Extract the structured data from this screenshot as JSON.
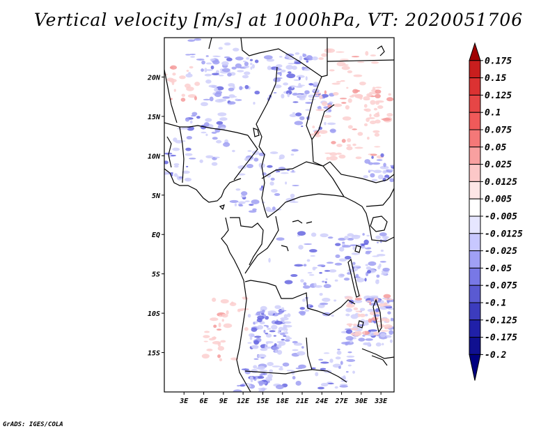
{
  "title": "Vertical velocity [m/s] at 1000hPa, VT: 2020051706",
  "credit": "GrADS: IGES/COLA",
  "map": {
    "lon_range": [
      0,
      35
    ],
    "lat_range": [
      -20,
      25
    ],
    "lat_labels": [
      {
        "value": 20,
        "label": "20N"
      },
      {
        "value": 15,
        "label": "15N"
      },
      {
        "value": 10,
        "label": "10N"
      },
      {
        "value": 5,
        "label": "5N"
      },
      {
        "value": 0,
        "label": "EQ"
      },
      {
        "value": -5,
        "label": "5S"
      },
      {
        "value": -10,
        "label": "10S"
      },
      {
        "value": -15,
        "label": "15S"
      }
    ],
    "lon_labels": [
      {
        "value": 3,
        "label": "3E"
      },
      {
        "value": 6,
        "label": "6E"
      },
      {
        "value": 9,
        "label": "9E"
      },
      {
        "value": 12,
        "label": "12E"
      },
      {
        "value": 15,
        "label": "15E"
      },
      {
        "value": 18,
        "label": "18E"
      },
      {
        "value": 21,
        "label": "21E"
      },
      {
        "value": 24,
        "label": "24E"
      },
      {
        "value": 27,
        "label": "27E"
      },
      {
        "value": 30,
        "label": "30E"
      },
      {
        "value": 33,
        "label": "33E"
      }
    ],
    "upward_color": "#ff8080",
    "downward_color": "#6060e0"
  },
  "colorbar": {
    "levels": [
      "0.175",
      "0.15",
      "0.125",
      "0.1",
      "0.075",
      "0.05",
      "0.025",
      "0.0125",
      "0.005",
      "-0.005",
      "-0.0125",
      "-0.025",
      "-0.05",
      "-0.075",
      "-0.1",
      "-0.125",
      "-0.175",
      "-0.2"
    ],
    "colors": [
      "#a00000",
      "#c81e1e",
      "#dc3232",
      "#e64646",
      "#f05a5a",
      "#f47878",
      "#f8a0a0",
      "#fcc8c8",
      "#fde6e6",
      "#ffffff",
      "#e6e6ff",
      "#c8c8ff",
      "#a0a0f5",
      "#7878e6",
      "#5a5ad2",
      "#3c3cbe",
      "#2020a8",
      "#101090",
      "#000080"
    ]
  }
}
